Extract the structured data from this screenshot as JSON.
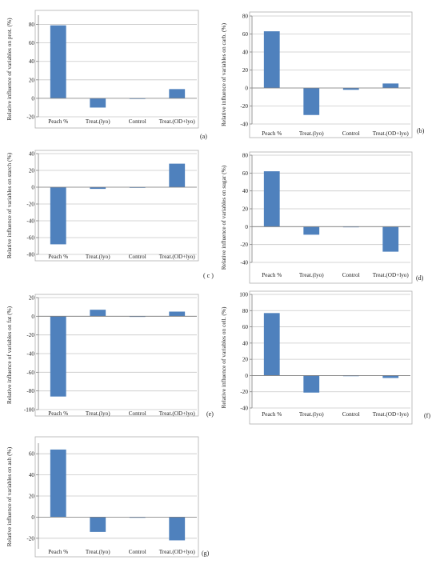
{
  "colors": {
    "bar": "#4f81bd",
    "grid": "#c8c8c8",
    "axis": "#808080",
    "frame": "#b0b0b0"
  },
  "chart_data": [
    {
      "type": "bar",
      "panel_label": "(a)",
      "categories": [
        "Peach %",
        "Treat.(lyo)",
        "Control",
        "Treat.(OD+lyo)"
      ],
      "values": [
        79,
        -10,
        0,
        10
      ],
      "ylabel": "Relative influence of variables on prot. (%)",
      "ylim": [
        -20,
        90
      ],
      "yticks": [
        -20,
        0,
        20,
        40,
        60,
        80
      ],
      "grid": true
    },
    {
      "type": "bar",
      "panel_label": "(b)",
      "categories": [
        "Peach %",
        "Treat.(lyo)",
        "Control",
        "Treat.(OD+lyo)"
      ],
      "values": [
        63,
        -30,
        -2,
        5
      ],
      "ylabel": "Relative influence of variables on carb. (%)",
      "ylim": [
        -40,
        80
      ],
      "yticks": [
        -40,
        -20,
        0,
        20,
        40,
        60,
        80
      ],
      "grid": true
    },
    {
      "type": "bar",
      "panel_label": "( c )",
      "categories": [
        "Peach %",
        "Treat.(lyo)",
        "Control",
        "Treat.(OD+lyo)"
      ],
      "values": [
        -68,
        -2,
        -0.5,
        28
      ],
      "ylabel": "Relative influence of variables on starch (%)",
      "ylim": [
        -80,
        40
      ],
      "yticks": [
        -80,
        -60,
        -40,
        -20,
        0,
        20,
        40
      ],
      "grid": true
    },
    {
      "type": "bar",
      "panel_label": "(d)",
      "categories": [
        "Peach %",
        "Treat.(lyo)",
        "Control",
        "Treat.(OD+lyo)"
      ],
      "values": [
        62,
        -9,
        0,
        -28
      ],
      "ylabel": "Relative influence of variables on sugar (%)",
      "ylim": [
        -40,
        80
      ],
      "yticks": [
        -40,
        -20,
        0,
        20,
        40,
        60,
        80
      ],
      "grid": true
    },
    {
      "type": "bar",
      "panel_label": "(e)",
      "categories": [
        "Peach %",
        "Treat.(lyo)",
        "Control",
        "Treat.(OD+lyo)"
      ],
      "values": [
        -86,
        7,
        -0.5,
        5
      ],
      "ylabel": "Relative influence of variables on fat (%)",
      "ylim": [
        -100,
        20
      ],
      "yticks": [
        -100,
        -80,
        -60,
        -40,
        -20,
        0,
        20
      ],
      "grid": true
    },
    {
      "type": "bar",
      "panel_label": "(f)",
      "categories": [
        "Peach %",
        "Treat.(lyo)",
        "Control",
        "Treat.(OD+lyo)"
      ],
      "values": [
        77,
        -21,
        0,
        -3
      ],
      "ylabel": "Relative influence of variables on cell. (%)",
      "ylim": [
        -40,
        100
      ],
      "yticks": [
        -40,
        -20,
        0,
        20,
        40,
        60,
        80,
        100
      ],
      "grid": true
    },
    {
      "type": "bar",
      "panel_label": "(g)",
      "categories": [
        "Peach %",
        "Treat.(lyo)",
        "Control",
        "Treat.(OD+lyo)"
      ],
      "values": [
        64,
        -14,
        -0.5,
        -22
      ],
      "ylabel": "Relative influence of variables on ash (%)",
      "ylim": [
        -30,
        70
      ],
      "yticks": [
        -20,
        0,
        20,
        40,
        60
      ],
      "grid": true
    }
  ]
}
